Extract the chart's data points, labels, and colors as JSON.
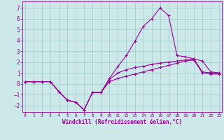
{
  "background_color": "#cce8e8",
  "grid_color": "#99cccc",
  "line_color": "#990099",
  "spine_color": "#990099",
  "xlim_min": -0.3,
  "xlim_max": 23.3,
  "ylim_min": -2.6,
  "ylim_max": 7.6,
  "xticks": [
    0,
    1,
    2,
    3,
    4,
    5,
    6,
    7,
    8,
    9,
    10,
    11,
    12,
    13,
    14,
    15,
    16,
    17,
    18,
    19,
    20,
    21,
    22,
    23
  ],
  "yticks": [
    -2,
    -1,
    0,
    1,
    2,
    3,
    4,
    5,
    6,
    7
  ],
  "xlabel": "Windchill (Refroidissement éolien,°C)",
  "x": [
    0,
    1,
    2,
    3,
    4,
    5,
    6,
    7,
    8,
    9,
    10,
    11,
    12,
    13,
    14,
    15,
    16,
    17,
    18,
    19,
    20,
    21,
    22,
    23
  ],
  "line_upper": [
    0.2,
    0.2,
    0.2,
    0.2,
    -0.7,
    -1.5,
    -1.7,
    -2.4,
    -0.8,
    -0.8,
    0.5,
    1.6,
    2.6,
    3.9,
    5.3,
    6.0,
    7.0,
    6.3,
    2.6,
    2.5,
    2.3,
    2.1,
    1.1,
    1.0
  ],
  "line_mid": [
    0.2,
    0.2,
    0.2,
    0.2,
    -0.7,
    -1.5,
    -1.7,
    -2.4,
    -0.8,
    -0.8,
    0.4,
    1.0,
    1.3,
    1.5,
    1.6,
    1.8,
    1.9,
    2.0,
    2.1,
    2.2,
    2.3,
    1.1,
    1.0,
    1.0
  ],
  "line_lower": [
    0.2,
    0.2,
    0.2,
    0.2,
    -0.7,
    -1.5,
    -1.7,
    -2.4,
    -0.8,
    -0.8,
    0.2,
    0.5,
    0.7,
    0.9,
    1.1,
    1.3,
    1.5,
    1.7,
    1.9,
    2.1,
    2.2,
    1.0,
    0.9,
    0.9
  ],
  "xlabel_fontsize": 5.5,
  "tick_fontsize_x": 4.5,
  "tick_fontsize_y": 5.5,
  "linewidth": 0.8,
  "markersize": 3.0,
  "markeredgewidth": 0.8
}
